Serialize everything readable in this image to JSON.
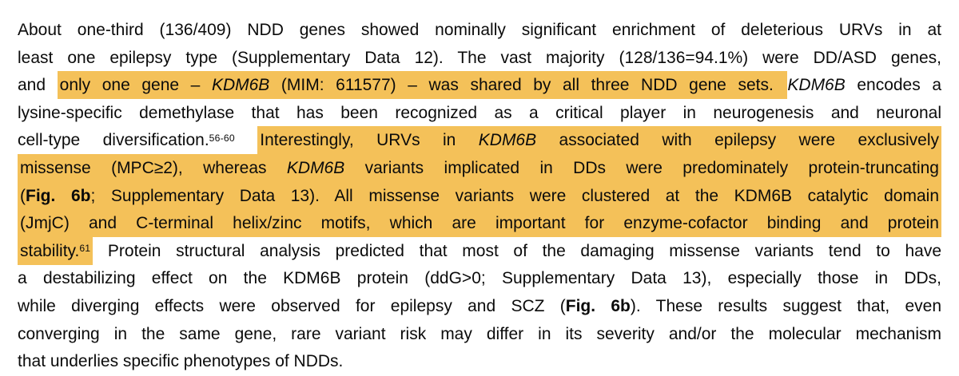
{
  "colors": {
    "highlight": "#F4C159",
    "text": "#0b0b0b",
    "background": "#FFFFFF"
  },
  "paragraph": {
    "lines": [
      [
        {
          "text": "About one-third (136/409) NDD genes showed nominally significant enrichment of deleterious URVs in at"
        }
      ],
      [
        {
          "text": "least one epilepsy type (Supplementary Data 12). The vast majority (128/136=94.1%) were DD/ASD genes,"
        }
      ],
      [
        {
          "text": "and "
        },
        {
          "text": "only one gene – ",
          "highlight": true
        },
        {
          "text": "KDM6B",
          "highlight": true,
          "italic": true
        },
        {
          "text": " (MIM: 611577) – was shared by all three NDD gene sets. ",
          "highlight": true
        },
        {
          "text": "KDM6B",
          "italic": true
        },
        {
          "text": " encodes a"
        }
      ],
      [
        {
          "text": "lysine-specific demethylase that has been recognized as a critical player in neurogenesis and neuronal"
        }
      ],
      [
        {
          "text": "cell-type diversification."
        },
        {
          "text": "56-60",
          "sup": true
        },
        {
          "text": " "
        },
        {
          "text": "Interestingly, URVs in ",
          "highlight": true
        },
        {
          "text": "KDM6B",
          "highlight": true,
          "italic": true
        },
        {
          "text": " associated with epilepsy were exclusively",
          "highlight": true
        }
      ],
      [
        {
          "text": "missense (MPC≥2), whereas ",
          "highlight": true
        },
        {
          "text": "KDM6B",
          "highlight": true,
          "italic": true
        },
        {
          "text": " variants implicated in DDs were predominately protein-truncating",
          "highlight": true
        }
      ],
      [
        {
          "text": "(",
          "highlight": true
        },
        {
          "text": "Fig. 6b",
          "highlight": true,
          "bold": true
        },
        {
          "text": "; Supplementary Data 13). All missense variants were clustered at the KDM6B catalytic domain",
          "highlight": true
        }
      ],
      [
        {
          "text": "(JmjC) and C-terminal helix/zinc motifs, which are important for enzyme-cofactor binding and protein",
          "highlight": true
        }
      ],
      [
        {
          "text": "stability.",
          "highlight": true
        },
        {
          "text": "61",
          "highlight": true,
          "sup": true
        },
        {
          "text": " Protein structural analysis predicted that most of the damaging missense variants tend to have"
        }
      ],
      [
        {
          "text": "a destabilizing effect on the KDM6B protein (ddG>0; Supplementary Data 13), especially those in DDs,"
        }
      ],
      [
        {
          "text": "while diverging effects were observed for epilepsy and SCZ ("
        },
        {
          "text": "Fig. 6b",
          "bold": true
        },
        {
          "text": "). These results suggest that, even"
        }
      ],
      [
        {
          "text": "converging in the same gene, rare variant risk may differ in its severity and/or the molecular mechanism"
        }
      ],
      [
        {
          "text": "that underlies specific phenotypes of NDDs."
        }
      ]
    ]
  }
}
